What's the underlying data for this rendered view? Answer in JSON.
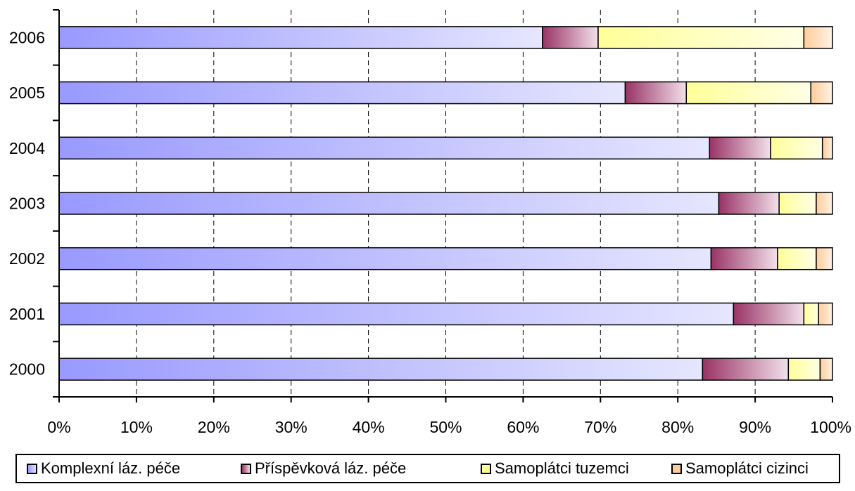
{
  "chart_data": {
    "type": "bar",
    "orientation": "horizontal",
    "stacked": "percent",
    "categories": [
      "2006",
      "2005",
      "2004",
      "2003",
      "2002",
      "2001",
      "2000"
    ],
    "series": [
      {
        "name": "Komplexní láz. péče",
        "values": [
          62.5,
          73.2,
          84.1,
          85.3,
          84.3,
          87.2,
          83.2
        ],
        "color": "#9999ff"
      },
      {
        "name": "Příspěvková láz. péče",
        "values": [
          7.2,
          7.9,
          7.9,
          7.8,
          8.6,
          9.1,
          11.1
        ],
        "color": "#993366"
      },
      {
        "name": "Samoplátci tuzemci",
        "values": [
          26.6,
          16.1,
          6.7,
          4.8,
          5.0,
          1.9,
          4.1
        ],
        "color": "#ffff99"
      },
      {
        "name": "Samoplátci cizinci",
        "values": [
          3.7,
          2.8,
          1.3,
          2.1,
          2.1,
          1.8,
          1.6
        ],
        "color": "#ffcc99"
      }
    ],
    "x_ticks": [
      "0%",
      "10%",
      "20%",
      "30%",
      "40%",
      "50%",
      "60%",
      "70%",
      "80%",
      "90%",
      "100%"
    ],
    "xlim": [
      0,
      100
    ],
    "grid": "vertical dashed",
    "legend": "bottom"
  }
}
